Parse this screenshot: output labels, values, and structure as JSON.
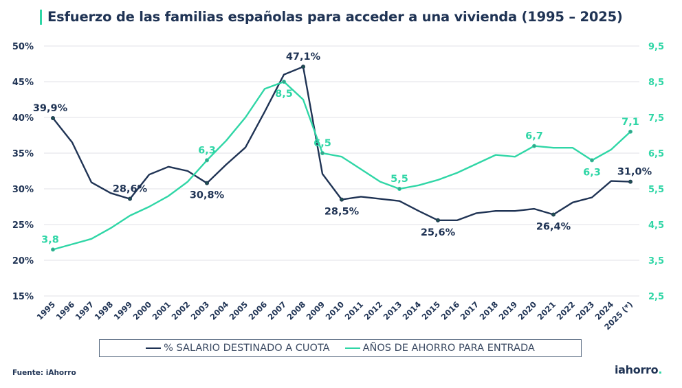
{
  "title": "Esfuerzo de las familias españolas para acceder a una vivienda (1995 – 2025)",
  "source": "Fuente: iAhorro",
  "brand": {
    "name": "iahorro",
    "dot": "."
  },
  "colors": {
    "dark": "#1f3354",
    "teal": "#2fd6a6",
    "grid": "#e6e8ec",
    "accent": "#2fd6a6"
  },
  "chart_data": {
    "type": "line",
    "title": "Esfuerzo de las familias españolas para acceder a una vivienda (1995 – 2025)",
    "xlabel": "",
    "ylabel": "",
    "categories": [
      "1995",
      "1996",
      "1997",
      "1998",
      "1999",
      "2000",
      "2001",
      "2002",
      "2003",
      "2004",
      "2005",
      "2006",
      "2007",
      "2008",
      "2009",
      "2010",
      "2011",
      "2012",
      "2013",
      "2014",
      "2015",
      "2016",
      "2017",
      "2018",
      "2019",
      "2020",
      "2021",
      "2022",
      "2023",
      "2024",
      "2025 (*)"
    ],
    "left_axis": {
      "min": 15,
      "max": 50,
      "ticks": [
        50,
        45,
        40,
        35,
        30,
        25,
        20,
        15
      ],
      "tick_labels": [
        "50%",
        "45%",
        "40%",
        "35%",
        "30%",
        "25%",
        "20%",
        "15%"
      ]
    },
    "right_axis": {
      "min": 2.5,
      "max": 9.5,
      "ticks": [
        9.5,
        8.5,
        7.5,
        6.5,
        5.5,
        4.5,
        3.5,
        2.5
      ],
      "tick_labels": [
        "9,5",
        "8,5",
        "7,5",
        "6,5",
        "5,5",
        "4,5",
        "3,5",
        "2,5"
      ]
    },
    "grid": true,
    "legend_position": "bottom",
    "series": [
      {
        "name": "% SALARIO  DESTINADO A CUOTA",
        "axis": "left",
        "color": "#1f3354",
        "values": [
          39.9,
          36.5,
          30.9,
          29.4,
          28.6,
          32.0,
          33.1,
          32.5,
          30.8,
          33.4,
          35.8,
          40.8,
          46.0,
          47.1,
          32.1,
          28.5,
          28.9,
          28.6,
          28.3,
          26.9,
          25.6,
          25.6,
          26.6,
          26.9,
          26.9,
          27.2,
          26.4,
          28.1,
          28.8,
          31.1,
          31.0
        ],
        "labels": [
          {
            "index": 0,
            "text": "39,9%",
            "pos": "above"
          },
          {
            "index": 4,
            "text": "28,6%",
            "pos": "above"
          },
          {
            "index": 8,
            "text": "30,8%",
            "pos": "below"
          },
          {
            "index": 13,
            "text": "47,1%",
            "pos": "above"
          },
          {
            "index": 15,
            "text": "28,5%",
            "pos": "below"
          },
          {
            "index": 20,
            "text": "25,6%",
            "pos": "below"
          },
          {
            "index": 26,
            "text": "26,4%",
            "pos": "below"
          },
          {
            "index": 30,
            "text": "31,0%",
            "pos": "above"
          }
        ]
      },
      {
        "name": "AÑOS DE AHORRO PARA ENTRADA",
        "axis": "right",
        "color": "#2fd6a6",
        "values": [
          3.8,
          3.95,
          4.1,
          4.4,
          4.75,
          5.0,
          5.3,
          5.7,
          6.3,
          6.85,
          7.5,
          8.3,
          8.5,
          8.0,
          6.5,
          6.4,
          6.05,
          5.7,
          5.5,
          5.6,
          5.75,
          5.95,
          6.2,
          6.45,
          6.4,
          6.7,
          6.65,
          6.65,
          6.3,
          6.6,
          7.1
        ],
        "labels": [
          {
            "index": 0,
            "text": "3,8",
            "pos": "above"
          },
          {
            "index": 8,
            "text": "6,3",
            "pos": "above"
          },
          {
            "index": 12,
            "text": "8,5",
            "pos": "below"
          },
          {
            "index": 14,
            "text": "6,5",
            "pos": "above"
          },
          {
            "index": 18,
            "text": "5,5",
            "pos": "above"
          },
          {
            "index": 25,
            "text": "6,7",
            "pos": "above"
          },
          {
            "index": 28,
            "text": "6,3",
            "pos": "below"
          },
          {
            "index": 30,
            "text": "7,1",
            "pos": "above"
          }
        ]
      }
    ]
  },
  "legend": [
    {
      "label": "% SALARIO  DESTINADO A CUOTA",
      "color": "#1f3354"
    },
    {
      "label": "AÑOS DE AHORRO PARA ENTRADA",
      "color": "#2fd6a6"
    }
  ]
}
